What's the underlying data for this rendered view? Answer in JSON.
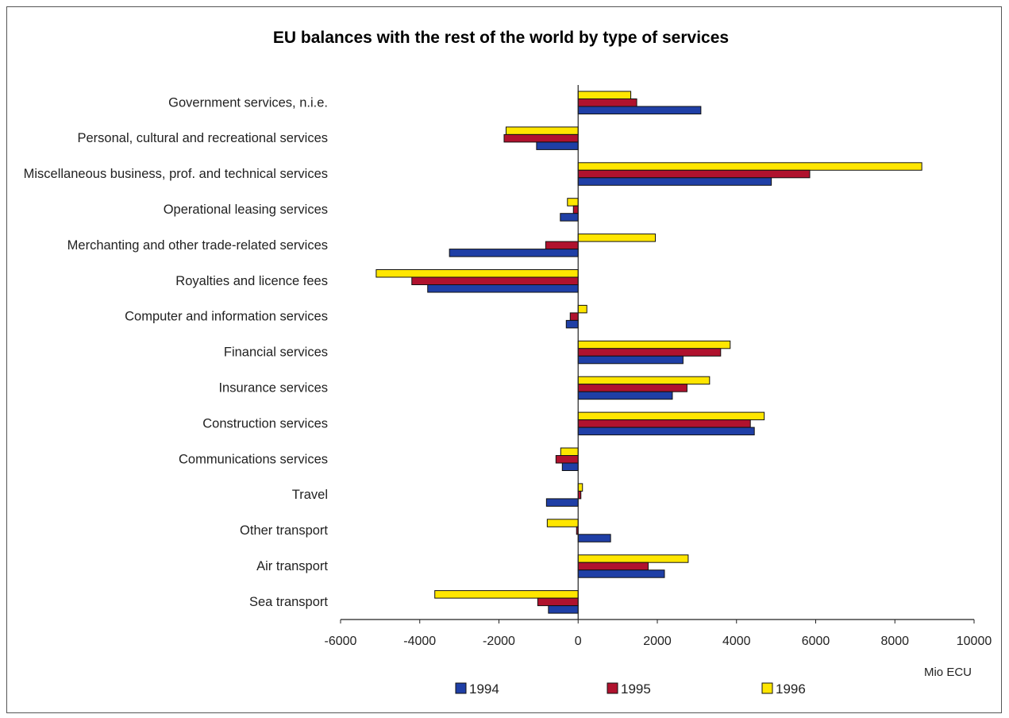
{
  "chart_data": {
    "type": "bar",
    "orientation": "horizontal",
    "title": "EU balances with the rest of the world by type of services",
    "xlabel": "Mio ECU",
    "ylabel": "",
    "xlim": [
      -6000,
      10000
    ],
    "x_ticks": [
      "-6000",
      "-4000",
      "-2000",
      "0",
      "2000",
      "4000",
      "6000",
      "8000",
      "10000"
    ],
    "grid": false,
    "legend_position": "bottom",
    "categories": [
      "Government services, n.i.e.",
      "Personal, cultural and recreational services",
      "Miscellaneous business, prof. and technical services",
      "Operational leasing services",
      "Merchanting and other trade-related services",
      "Royalties and licence fees",
      "Computer and information services",
      "Financial services",
      "Insurance services",
      "Construction services",
      "Communications services",
      "Travel",
      "Other transport",
      "Air transport",
      "Sea transport"
    ],
    "series": [
      {
        "name": "1994",
        "color": "#1f3fa6",
        "values": [
          3100,
          -1050,
          4880,
          -450,
          -3250,
          -3800,
          -300,
          2650,
          2380,
          4450,
          -400,
          -800,
          820,
          2180,
          -750
        ]
      },
      {
        "name": "1995",
        "color": "#b0122e",
        "values": [
          1480,
          -1870,
          5850,
          -120,
          -820,
          -4200,
          -200,
          3600,
          2750,
          4350,
          -560,
          70,
          -40,
          1770,
          -1020
        ]
      },
      {
        "name": "1996",
        "color": "#ffe600",
        "values": [
          1330,
          -1820,
          8680,
          -270,
          1950,
          -5100,
          220,
          3840,
          3320,
          4700,
          -440,
          110,
          -780,
          2780,
          -3620
        ]
      }
    ]
  }
}
